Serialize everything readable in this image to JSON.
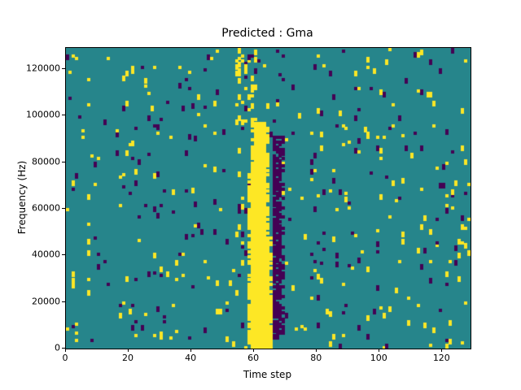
{
  "chart_data": {
    "type": "heatmap",
    "title": "Predicted : Gma",
    "xlabel": "Time step",
    "ylabel": "Frequency (Hz)",
    "xlim": [
      0,
      129
    ],
    "ylim": [
      0,
      129000
    ],
    "x_bins": 129,
    "y_bins": 129,
    "xticks": [
      0,
      20,
      40,
      60,
      80,
      100,
      120
    ],
    "yticks": [
      0,
      20000,
      40000,
      60000,
      80000,
      100000,
      120000
    ],
    "grid": false,
    "legend": "none",
    "colors": {
      "background": "#26858b",
      "high": "#fde725",
      "low": "#440154",
      "spine": "#000000"
    },
    "noise": {
      "seed": 42,
      "high_density": 0.013,
      "low_density": 0.011
    },
    "features": {
      "yellow_band": {
        "x0": 58,
        "x1": 65,
        "f0": 0,
        "f1": 96000
      },
      "purple_band": {
        "x0": 66,
        "x1": 69,
        "f0": 4000,
        "f1": 90000,
        "density": 0.8
      },
      "yellow_top_scatter": {
        "x0": 54,
        "x1": 61,
        "f0": 96000,
        "f1": 129000,
        "density": 0.12
      }
    }
  }
}
